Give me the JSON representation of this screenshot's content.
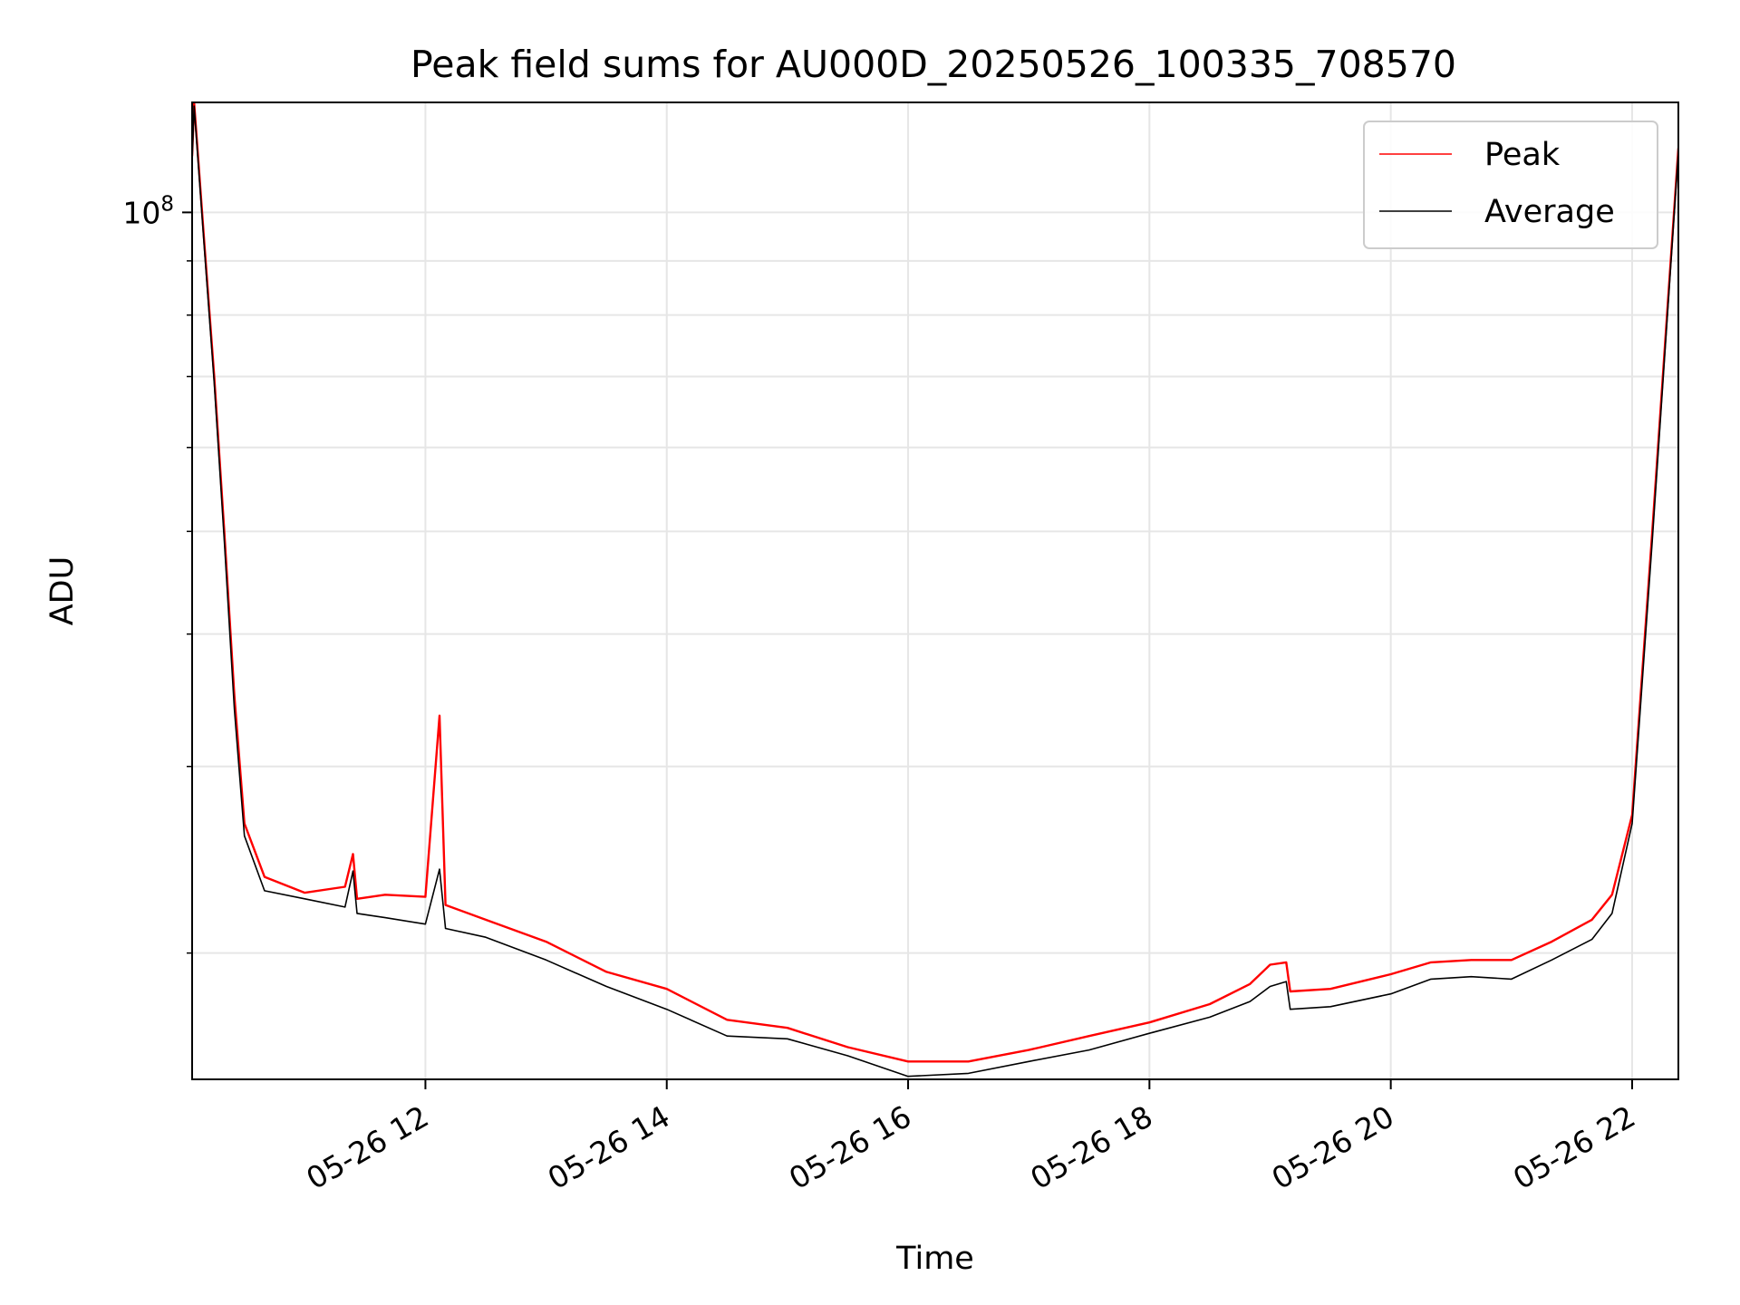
{
  "chart_data": {
    "type": "line",
    "title": "Peak field sums for AU000D_20250526_100335_708570",
    "xlabel": "Time",
    "ylabel": "ADU",
    "y_scale": "log",
    "ylim": [
      15200000,
      127000000
    ],
    "y_tick_labels": [
      {
        "label": "10",
        "exp": "8",
        "value": 100000000
      }
    ],
    "y_minor_ticks": [
      20000000,
      30000000,
      40000000,
      50000000,
      60000000,
      70000000,
      80000000,
      90000000
    ],
    "xlim": [
      "2025-05-26 10:04",
      "2025-05-26 22:23"
    ],
    "x_tick_labels": [
      {
        "label": "05-26 12",
        "time": "2025-05-26 12:00"
      },
      {
        "label": "05-26 14",
        "time": "2025-05-26 14:00"
      },
      {
        "label": "05-26 16",
        "time": "2025-05-26 16:00"
      },
      {
        "label": "05-26 18",
        "time": "2025-05-26 18:00"
      },
      {
        "label": "05-26 20",
        "time": "2025-05-26 20:00"
      },
      {
        "label": "05-26 22",
        "time": "2025-05-26 22:00"
      }
    ],
    "grid": true,
    "legend_position": "top-right",
    "series": [
      {
        "name": "Peak",
        "color": "#ff0000",
        "points": [
          [
            "2025-05-26 10:04",
            113000000
          ],
          [
            "2025-05-26 10:05",
            127000000
          ],
          [
            "2025-05-26 10:10",
            94000000
          ],
          [
            "2025-05-26 10:15",
            70000000
          ],
          [
            "2025-05-26 10:20",
            50000000
          ],
          [
            "2025-05-26 10:25",
            35000000
          ],
          [
            "2025-05-26 10:30",
            26500000
          ],
          [
            "2025-05-26 10:40",
            23600000
          ],
          [
            "2025-05-26 11:00",
            22800000
          ],
          [
            "2025-05-26 11:20",
            23100000
          ],
          [
            "2025-05-26 11:24",
            24800000
          ],
          [
            "2025-05-26 11:26",
            22500000
          ],
          [
            "2025-05-26 11:40",
            22700000
          ],
          [
            "2025-05-26 12:00",
            22600000
          ],
          [
            "2025-05-26 12:07",
            33500000
          ],
          [
            "2025-05-26 12:10",
            22200000
          ],
          [
            "2025-05-26 12:30",
            21500000
          ],
          [
            "2025-05-26 13:00",
            20500000
          ],
          [
            "2025-05-26 13:30",
            19200000
          ],
          [
            "2025-05-26 14:00",
            18500000
          ],
          [
            "2025-05-26 14:30",
            17300000
          ],
          [
            "2025-05-26 15:00",
            17000000
          ],
          [
            "2025-05-26 15:30",
            16300000
          ],
          [
            "2025-05-26 16:00",
            15800000
          ],
          [
            "2025-05-26 16:30",
            15800000
          ],
          [
            "2025-05-26 17:00",
            16200000
          ],
          [
            "2025-05-26 17:30",
            16700000
          ],
          [
            "2025-05-26 18:00",
            17200000
          ],
          [
            "2025-05-26 18:30",
            17900000
          ],
          [
            "2025-05-26 18:50",
            18700000
          ],
          [
            "2025-05-26 19:00",
            19500000
          ],
          [
            "2025-05-26 19:08",
            19600000
          ],
          [
            "2025-05-26 19:10",
            18400000
          ],
          [
            "2025-05-26 19:30",
            18500000
          ],
          [
            "2025-05-26 20:00",
            19100000
          ],
          [
            "2025-05-26 20:20",
            19600000
          ],
          [
            "2025-05-26 20:40",
            19700000
          ],
          [
            "2025-05-26 21:00",
            19700000
          ],
          [
            "2025-05-26 21:20",
            20500000
          ],
          [
            "2025-05-26 21:40",
            21500000
          ],
          [
            "2025-05-26 21:50",
            22700000
          ],
          [
            "2025-05-26 22:00",
            27000000
          ],
          [
            "2025-05-26 22:10",
            50000000
          ],
          [
            "2025-05-26 22:23",
            115000000
          ]
        ]
      },
      {
        "name": "Average",
        "color": "#000000",
        "points": [
          [
            "2025-05-26 10:04",
            112000000
          ],
          [
            "2025-05-26 10:05",
            126000000
          ],
          [
            "2025-05-26 10:10",
            93000000
          ],
          [
            "2025-05-26 10:15",
            69000000
          ],
          [
            "2025-05-26 10:20",
            49000000
          ],
          [
            "2025-05-26 10:25",
            34000000
          ],
          [
            "2025-05-26 10:30",
            25800000
          ],
          [
            "2025-05-26 10:40",
            22900000
          ],
          [
            "2025-05-26 11:00",
            22500000
          ],
          [
            "2025-05-26 11:20",
            22100000
          ],
          [
            "2025-05-26 11:24",
            23900000
          ],
          [
            "2025-05-26 11:26",
            21800000
          ],
          [
            "2025-05-26 11:40",
            21600000
          ],
          [
            "2025-05-26 12:00",
            21300000
          ],
          [
            "2025-05-26 12:07",
            24000000
          ],
          [
            "2025-05-26 12:10",
            21100000
          ],
          [
            "2025-05-26 12:30",
            20700000
          ],
          [
            "2025-05-26 13:00",
            19700000
          ],
          [
            "2025-05-26 13:30",
            18600000
          ],
          [
            "2025-05-26 14:00",
            17700000
          ],
          [
            "2025-05-26 14:30",
            16700000
          ],
          [
            "2025-05-26 15:00",
            16600000
          ],
          [
            "2025-05-26 15:30",
            16000000
          ],
          [
            "2025-05-26 16:00",
            15300000
          ],
          [
            "2025-05-26 16:30",
            15400000
          ],
          [
            "2025-05-26 17:00",
            15800000
          ],
          [
            "2025-05-26 17:30",
            16200000
          ],
          [
            "2025-05-26 18:00",
            16800000
          ],
          [
            "2025-05-26 18:30",
            17400000
          ],
          [
            "2025-05-26 18:50",
            18000000
          ],
          [
            "2025-05-26 19:00",
            18600000
          ],
          [
            "2025-05-26 19:08",
            18800000
          ],
          [
            "2025-05-26 19:10",
            17700000
          ],
          [
            "2025-05-26 19:30",
            17800000
          ],
          [
            "2025-05-26 20:00",
            18300000
          ],
          [
            "2025-05-26 20:20",
            18900000
          ],
          [
            "2025-05-26 20:40",
            19000000
          ],
          [
            "2025-05-26 21:00",
            18900000
          ],
          [
            "2025-05-26 21:20",
            19700000
          ],
          [
            "2025-05-26 21:40",
            20600000
          ],
          [
            "2025-05-26 21:50",
            21800000
          ],
          [
            "2025-05-26 22:00",
            26500000
          ],
          [
            "2025-05-26 22:10",
            49000000
          ],
          [
            "2025-05-26 22:23",
            114000000
          ]
        ]
      }
    ]
  }
}
